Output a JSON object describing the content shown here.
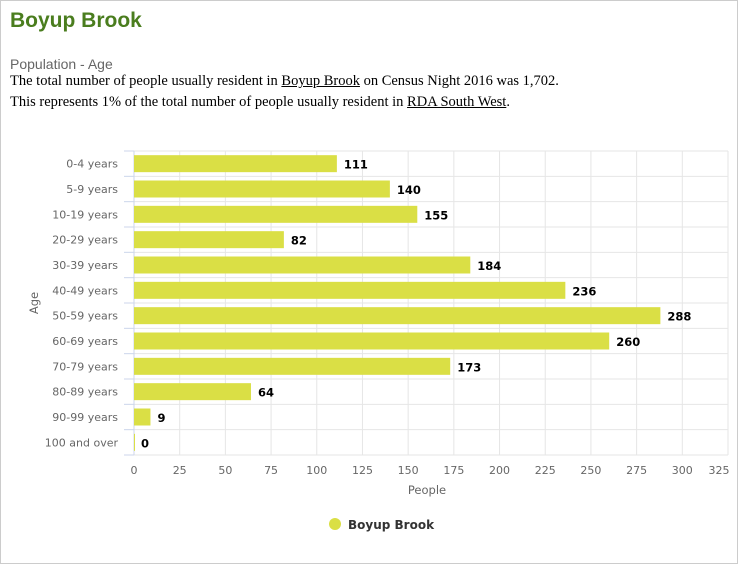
{
  "header": {
    "title": "Boyup Brook",
    "subtitle": "Population - Age",
    "line1": {
      "pre": "The total number of people usually resident in ",
      "link": "Boyup Brook",
      "post": " on Census Night 2016 was 1,702."
    },
    "line2": {
      "pre": "This represents 1% of the total number of people usually resident in ",
      "link": "RDA South West",
      "post": "."
    }
  },
  "chart_data": {
    "type": "bar",
    "orientation": "horizontal",
    "categories": [
      "0-4 years",
      "5-9 years",
      "10-19 years",
      "20-29 years",
      "30-39 years",
      "40-49 years",
      "50-59 years",
      "60-69 years",
      "70-79 years",
      "80-89 years",
      "90-99 years",
      "100 and over"
    ],
    "series": [
      {
        "name": "Boyup Brook",
        "color": "#dadf45",
        "values": [
          111,
          140,
          155,
          82,
          184,
          236,
          288,
          260,
          173,
          64,
          9,
          0
        ]
      }
    ],
    "xlabel": "People",
    "ylabel": "Age",
    "xlim": [
      0,
      325
    ],
    "xticks": [
      0,
      25,
      50,
      75,
      100,
      125,
      150,
      175,
      200,
      225,
      250,
      275,
      300,
      325
    ],
    "grid": true,
    "legend": "bottom-center"
  }
}
